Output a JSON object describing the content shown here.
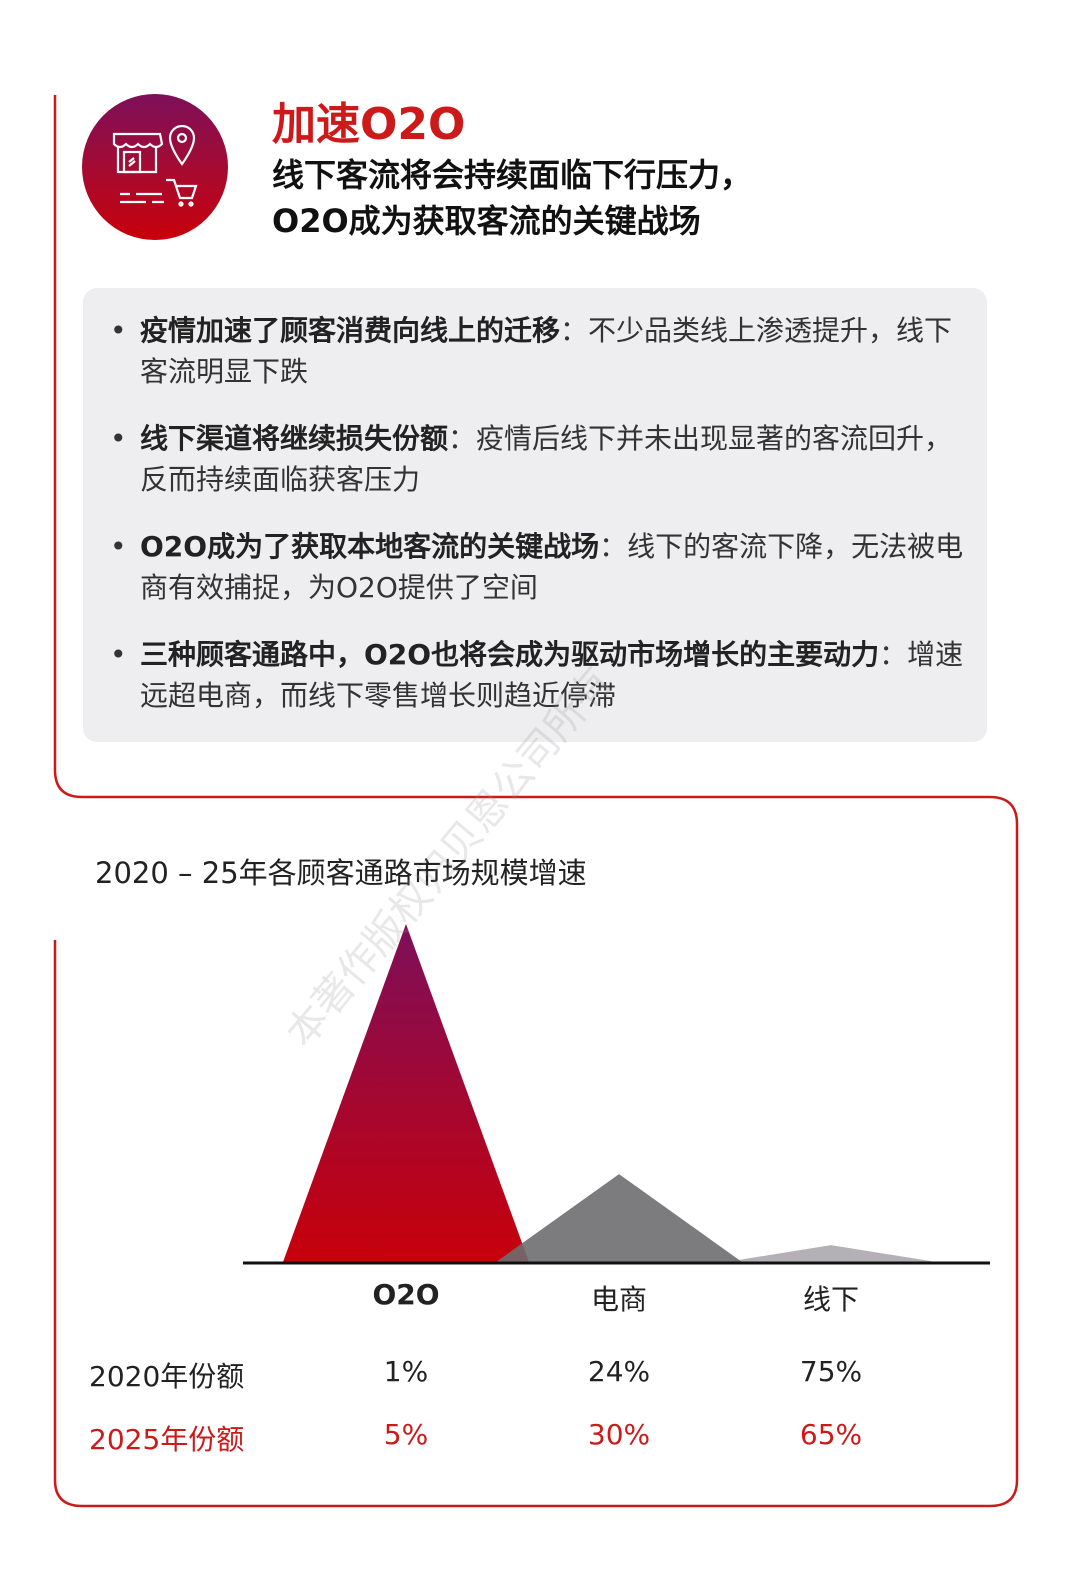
{
  "header": {
    "icon": "store-location-cart-icon",
    "title": "加速O2O",
    "subtitle_line1": "线下客流将会持续面临下行压力，",
    "subtitle_line2": "O2O成为获取客流的关键战场"
  },
  "bullets": [
    {
      "bold": "疫情加速了顾客消费向线上的迁移",
      "text": "：不少品类线上渗透提升，线下客流明显下跌"
    },
    {
      "bold": "线下渠道将继续损失份额",
      "text": "：疫情后线下并未出现显著的客流回升，反而持续面临获客压力"
    },
    {
      "bold": "O2O成为了获取本地客流的关键战场",
      "text": "：线下的客流下降，无法被电商有效捕捉，为O2O提供了空间"
    },
    {
      "bold": "三种顾客通路中，O2O也将会成为驱动市场增长的主要动力",
      "text": "：增速远超电商，而线下零售增长则趋近停滞"
    }
  ],
  "watermark": "本著作版权归贝恩公司所有",
  "colors": {
    "accent": "#cc1a1a",
    "gradient_top": "#7d0f5a",
    "gradient_bottom": "#c8000a",
    "ecommerce": "#6e6d70",
    "offline": "#b3b1b5",
    "panel": "#eeedf0"
  },
  "chart_data": {
    "type": "area",
    "title": "2020 – 25年各顾客通路市场规模增速",
    "categories": [
      "O2O",
      "电商",
      "线下"
    ],
    "relative_growth_index": [
      100,
      26,
      5
    ],
    "table": {
      "rows": [
        {
          "label": "2020年份额",
          "values": [
            "1%",
            "24%",
            "75%"
          ]
        },
        {
          "label": "2025年份额",
          "values": [
            "5%",
            "30%",
            "65%"
          ]
        }
      ]
    },
    "grid": false,
    "axis_ticks": false
  }
}
